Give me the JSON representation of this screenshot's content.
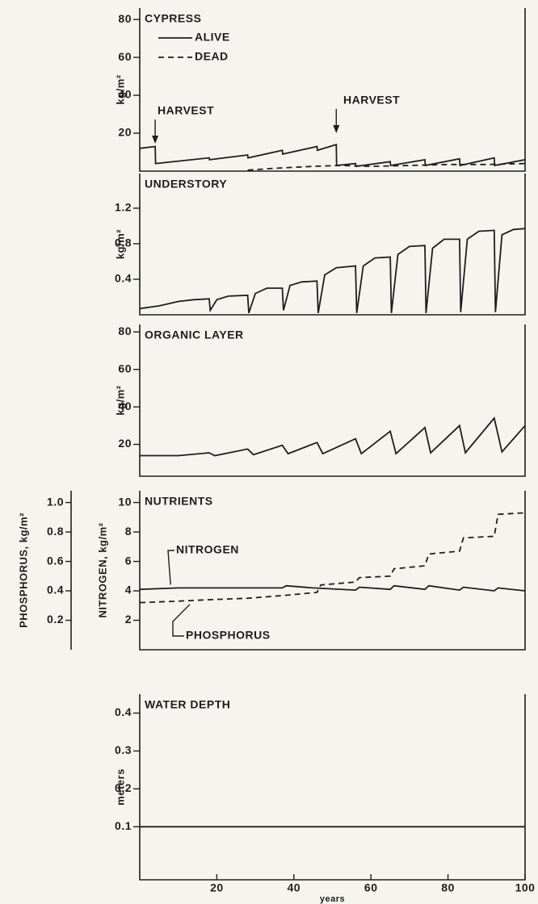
{
  "chart_data": [
    {
      "type": "line",
      "title": "CYPRESS",
      "ylabel": "kg/m²",
      "xlim": [
        0,
        100
      ],
      "ylim": [
        0,
        86
      ],
      "yticks": [
        20,
        40,
        60,
        80
      ],
      "annotations": [
        "HARVEST",
        "HARVEST"
      ],
      "series": [
        {
          "name": "ALIVE",
          "color": "#1e1e1e",
          "dashed": false,
          "x": [
            0,
            4,
            4.1,
            18,
            18.1,
            28,
            28.1,
            37,
            37.1,
            46,
            46.1,
            51,
            51.1,
            56,
            56.1,
            65,
            65.1,
            74,
            74.1,
            83,
            83.1,
            92,
            92.1,
            100
          ],
          "values": [
            12,
            13,
            4,
            7,
            6,
            8.5,
            7,
            11,
            9,
            13,
            11,
            14,
            3,
            4,
            2.5,
            5,
            3,
            6,
            3,
            6.5,
            3,
            7,
            3,
            6
          ]
        },
        {
          "name": "DEAD",
          "color": "#1e1e1e",
          "dashed": true,
          "x": [
            28,
            35,
            45,
            52,
            60,
            70,
            80,
            90,
            100
          ],
          "values": [
            0.5,
            1.5,
            2.5,
            3,
            2.5,
            3,
            3.5,
            3.5,
            4
          ]
        }
      ]
    },
    {
      "type": "line",
      "title": "UNDERSTORY",
      "ylabel": "kg/m²",
      "xlim": [
        0,
        100
      ],
      "ylim": [
        0,
        1.59
      ],
      "yticks": [
        0.4,
        0.8,
        1.2
      ],
      "color": "#1e1e1e",
      "x": [
        0,
        5,
        10,
        14,
        18,
        18.3,
        20,
        23,
        28,
        28.3,
        30,
        33,
        37,
        37.3,
        39,
        42,
        46,
        46.3,
        48,
        51,
        56,
        56.3,
        58,
        61,
        65,
        65.3,
        67,
        70,
        74,
        74.3,
        76,
        79,
        83,
        83.3,
        85,
        88,
        92,
        92.3,
        94,
        97,
        100
      ],
      "values": [
        0.07,
        0.1,
        0.15,
        0.17,
        0.18,
        0.05,
        0.17,
        0.21,
        0.22,
        0.02,
        0.24,
        0.3,
        0.3,
        0.05,
        0.33,
        0.37,
        0.38,
        0.02,
        0.45,
        0.53,
        0.55,
        0.02,
        0.55,
        0.64,
        0.65,
        0.02,
        0.68,
        0.77,
        0.78,
        0.02,
        0.75,
        0.85,
        0.85,
        0.03,
        0.85,
        0.94,
        0.95,
        0.03,
        0.9,
        0.96,
        0.97
      ]
    },
    {
      "type": "line",
      "title": "ORGANIC   LAYER",
      "ylabel": "kg/m²",
      "xlim": [
        0,
        100
      ],
      "ylim": [
        3,
        84
      ],
      "yticks": [
        20,
        40,
        60,
        80
      ],
      "color": "#1e1e1e",
      "x": [
        0,
        10,
        18,
        19.5,
        28,
        29.5,
        37,
        38.5,
        46,
        47.5,
        56,
        57.5,
        65,
        66.5,
        74,
        75.5,
        83,
        84.5,
        92,
        94,
        100
      ],
      "values": [
        14,
        14,
        15.5,
        14,
        17.5,
        14.5,
        19.5,
        15,
        21,
        15,
        23,
        15,
        27,
        15,
        29,
        15.5,
        30,
        15.5,
        34,
        16,
        30
      ]
    },
    {
      "type": "line",
      "title": "NUTRIENTS",
      "ylabel": "NITROGEN,  kg/m²",
      "y2label": "PHOSPHORUS,  kg/m²",
      "xlim": [
        0,
        100
      ],
      "ylim": [
        0,
        10.8
      ],
      "yticks": [
        2,
        4,
        6,
        8,
        10
      ],
      "y2lim": [
        0,
        1.08
      ],
      "y2ticks": [
        0.2,
        0.4,
        0.6,
        0.8,
        {
          "value": 1,
          "label": "1.0"
        }
      ],
      "series": [
        {
          "name": "NITROGEN",
          "color": "#1e1e1e",
          "dashed": false,
          "x": [
            0,
            10,
            37,
            38,
            45,
            56,
            57,
            65,
            66,
            74,
            75,
            83,
            84,
            92,
            93,
            100
          ],
          "values": [
            4.1,
            4.2,
            4.2,
            4.35,
            4.2,
            4.05,
            4.25,
            4.1,
            4.35,
            4.1,
            4.35,
            4.05,
            4.25,
            4.0,
            4.2,
            4.0
          ]
        },
        {
          "name": "PHOSPHORUS",
          "color": "#1e1e1e",
          "dashed": true,
          "axis": "y2",
          "x": [
            0,
            10,
            18,
            28,
            38,
            46,
            47,
            56,
            57,
            65,
            66,
            74,
            75,
            83,
            84,
            92,
            93,
            100
          ],
          "values": [
            0.32,
            0.33,
            0.34,
            0.35,
            0.37,
            0.39,
            0.44,
            0.46,
            0.49,
            0.5,
            0.55,
            0.57,
            0.65,
            0.67,
            0.76,
            0.77,
            0.92,
            0.93
          ]
        }
      ]
    },
    {
      "type": "line",
      "title": "WATER   DEPTH",
      "ylabel": "meters",
      "xlabel": "years",
      "xlim": [
        0,
        100
      ],
      "xticks": [
        20,
        40,
        60,
        80,
        100
      ],
      "ylim": [
        -0.04,
        0.45
      ],
      "yticks": [
        0.1,
        0.2,
        0.3,
        0.4
      ],
      "color": "#1e1e1e",
      "x": [
        0,
        100
      ],
      "values": [
        0.1,
        0.1
      ]
    }
  ]
}
